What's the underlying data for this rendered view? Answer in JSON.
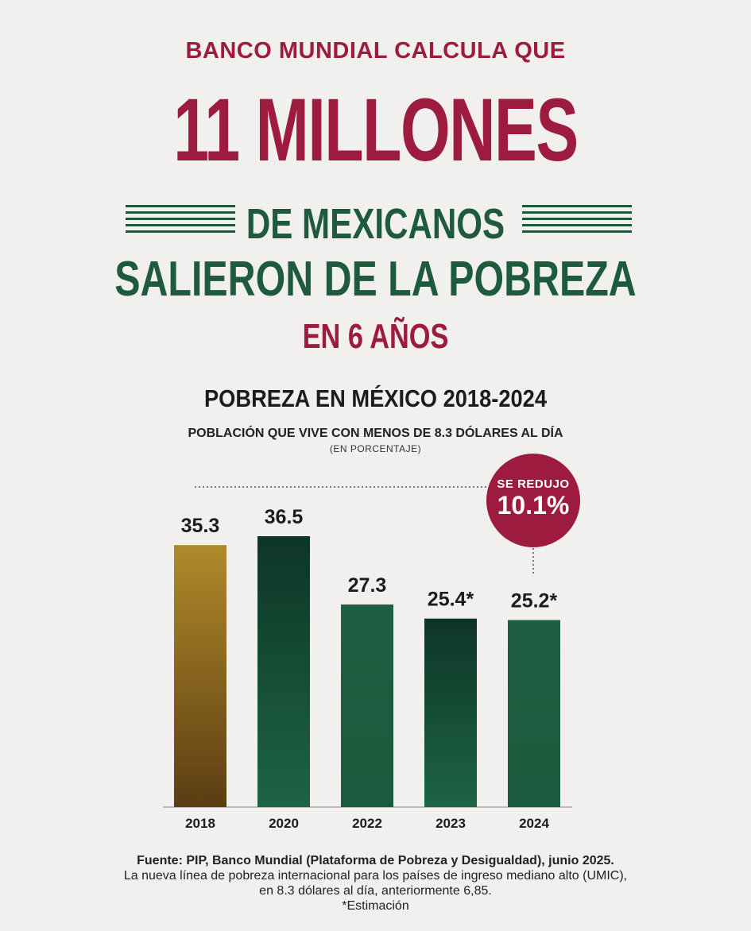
{
  "header": {
    "kicker": "BANCO MUNDIAL CALCULA QUE",
    "line1": "11 MILLONES",
    "line2": "DE MEXICANOS",
    "line3": "SALIERON DE LA POBREZA",
    "line4": "EN 6 AÑOS"
  },
  "badge": {
    "label": "SE REDUJO",
    "value": "10.1%"
  },
  "footer": {
    "source": "Fuente: PIP, Banco Mundial (Plataforma de Pobreza y Desigualdad), junio 2025.",
    "note1": "La nueva línea de pobreza internacional para los países de ingreso mediano alto (UMIC),",
    "note2": "en 8.3 dólares al día, anteriormente 6,85.",
    "note3": "*Estimación"
  },
  "colors": {
    "crimson": "#9d1b3f",
    "green": "#1e5a3e",
    "gold": "#a5822a",
    "dark_green": "#0f3a28"
  },
  "chart_data": {
    "type": "bar",
    "title": "POBREZA EN MÉXICO 2018-2024",
    "subtitle": "POBLACIÓN QUE VIVE CON MENOS DE 8.3 DÓLARES AL DÍA",
    "units": "(EN PORCENTAJE)",
    "categories": [
      "2018",
      "2020",
      "2022",
      "2023",
      "2024"
    ],
    "values": [
      35.3,
      36.5,
      27.3,
      25.4,
      25.2
    ],
    "value_labels": [
      "35.3",
      "36.5",
      "27.3",
      "25.4*",
      "25.2*"
    ],
    "bar_colors": [
      "#a5822a",
      "#0f3a28",
      "#1e5a3e",
      "#0f3a28",
      "#1e5a3e"
    ],
    "ylim": [
      0,
      36.5
    ],
    "grid": false
  }
}
